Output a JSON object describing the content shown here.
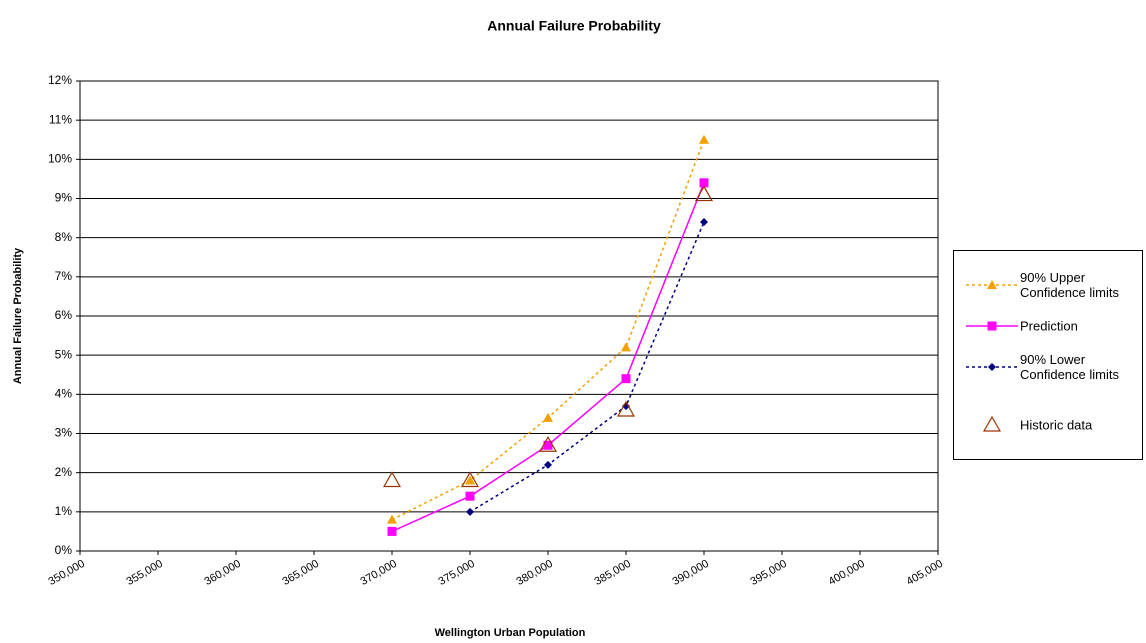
{
  "chart_data": {
    "type": "line",
    "title": "Annual Failure Probability",
    "xlabel": "Wellington Urban Population",
    "ylabel": "Annual Failure Probability",
    "xlim": [
      350000,
      405000
    ],
    "xticks": [
      {
        "value": 350000,
        "label": "350,000"
      },
      {
        "value": 355000,
        "label": "355,000"
      },
      {
        "value": 360000,
        "label": "360,000"
      },
      {
        "value": 365000,
        "label": "365,000"
      },
      {
        "value": 370000,
        "label": "370,000"
      },
      {
        "value": 375000,
        "label": "375,000"
      },
      {
        "value": 380000,
        "label": "380,000"
      },
      {
        "value": 385000,
        "label": "385,000"
      },
      {
        "value": 390000,
        "label": "390,000"
      },
      {
        "value": 395000,
        "label": "395,000"
      },
      {
        "value": 400000,
        "label": "400,000"
      },
      {
        "value": 405000,
        "label": "405,000"
      }
    ],
    "ylim": [
      0,
      12
    ],
    "yticks": [
      {
        "value": 0,
        "label": "0%"
      },
      {
        "value": 1,
        "label": "1%"
      },
      {
        "value": 2,
        "label": "2%"
      },
      {
        "value": 3,
        "label": "3%"
      },
      {
        "value": 4,
        "label": "4%"
      },
      {
        "value": 5,
        "label": "5%"
      },
      {
        "value": 6,
        "label": "6%"
      },
      {
        "value": 7,
        "label": "7%"
      },
      {
        "value": 8,
        "label": "8%"
      },
      {
        "value": 9,
        "label": "9%"
      },
      {
        "value": 10,
        "label": "10%"
      },
      {
        "value": 11,
        "label": "11%"
      },
      {
        "value": 12,
        "label": "12%"
      }
    ],
    "grid": true,
    "legend": "right",
    "series": [
      {
        "name": "90% Upper Confidence limits",
        "color": "#f5a000",
        "line_style": "dotted",
        "marker": "triangle",
        "x": [
          370000,
          375000,
          380000,
          385000,
          390000
        ],
        "values": [
          0.8,
          1.8,
          3.4,
          5.2,
          10.5
        ]
      },
      {
        "name": "Prediction",
        "color": "#ff00ff",
        "line_style": "solid",
        "marker": "square",
        "x": [
          370000,
          375000,
          380000,
          385000,
          390000
        ],
        "values": [
          0.5,
          1.4,
          2.7,
          4.4,
          9.4
        ]
      },
      {
        "name": "90% Lower Confidence limits",
        "color": "#000080",
        "line_style": "dotted",
        "marker": "diamond",
        "x": [
          375000,
          380000,
          385000,
          390000
        ],
        "values": [
          1.0,
          2.2,
          3.7,
          8.4
        ]
      },
      {
        "name": "Historic data",
        "color": "#993300",
        "line_style": "none",
        "marker": "open-triangle",
        "x": [
          370000,
          375000,
          380000,
          385000,
          390000
        ],
        "values": [
          1.8,
          1.8,
          2.7,
          3.6,
          9.1
        ]
      }
    ]
  }
}
